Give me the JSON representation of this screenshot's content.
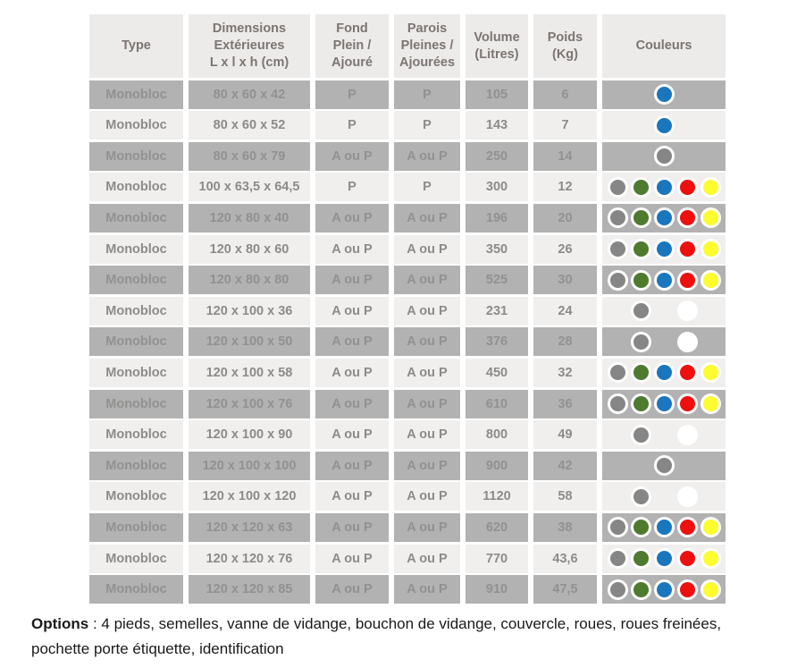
{
  "table": {
    "headers": [
      {
        "id": "type",
        "text": "Type"
      },
      {
        "id": "dimensions",
        "text": "Dimensions\nExtérieures\nL x l x h (cm)"
      },
      {
        "id": "fond",
        "text": "Fond\nPlein /\nAjouré"
      },
      {
        "id": "parois",
        "text": "Parois\nPleines /\nAjourées"
      },
      {
        "id": "volume",
        "text": "Volume\n(Litres)"
      },
      {
        "id": "poids",
        "text": "Poids\n(Kg)"
      },
      {
        "id": "couleurs",
        "text": "Couleurs"
      }
    ],
    "rows": [
      {
        "type": "Monobloc",
        "dimensions": "80 x 60 x 42",
        "fond": "P",
        "parois": "P",
        "volume": "105",
        "poids": "6",
        "couleurs": [
          null,
          null,
          "blue",
          null,
          null
        ]
      },
      {
        "type": "Monobloc",
        "dimensions": "80 x 60 x 52",
        "fond": "P",
        "parois": "P",
        "volume": "143",
        "poids": "7",
        "couleurs": [
          null,
          null,
          "blue",
          null,
          null
        ]
      },
      {
        "type": "Monobloc",
        "dimensions": "80 x 60 x 79",
        "fond": "A ou P",
        "parois": "A ou P",
        "volume": "250",
        "poids": "14",
        "couleurs": [
          null,
          null,
          "gray",
          null,
          null
        ]
      },
      {
        "type": "Monobloc",
        "dimensions": "100 x 63,5 x 64,5",
        "fond": "P",
        "parois": "P",
        "volume": "300",
        "poids": "12",
        "couleurs": [
          "gray",
          "green",
          "blue",
          "red",
          "yellow"
        ]
      },
      {
        "type": "Monobloc",
        "dimensions": "120 x 80 x 40",
        "fond": "A ou P",
        "parois": "A ou P",
        "volume": "196",
        "poids": "20",
        "couleurs": [
          "gray",
          "green",
          "blue",
          "red",
          "yellow"
        ]
      },
      {
        "type": "Monobloc",
        "dimensions": "120 x 80 x 60",
        "fond": "A ou P",
        "parois": "A ou P",
        "volume": "350",
        "poids": "26",
        "couleurs": [
          "gray",
          "green",
          "blue",
          "red",
          "yellow"
        ]
      },
      {
        "type": "Monobloc",
        "dimensions": "120 x 80 x 80",
        "fond": "A ou P",
        "parois": "A ou P",
        "volume": "525",
        "poids": "30",
        "couleurs": [
          "gray",
          "green",
          "blue",
          "red",
          "yellow"
        ]
      },
      {
        "type": "Monobloc",
        "dimensions": "120 x 100 x 36",
        "fond": "A ou P",
        "parois": "A ou P",
        "volume": "231",
        "poids": "24",
        "couleurs": [
          null,
          "gray",
          null,
          "white",
          null
        ]
      },
      {
        "type": "Monobloc",
        "dimensions": "120 x 100 x 50",
        "fond": "A ou P",
        "parois": "A ou P",
        "volume": "376",
        "poids": "28",
        "couleurs": [
          null,
          "gray",
          null,
          "white",
          null
        ]
      },
      {
        "type": "Monobloc",
        "dimensions": "120 x 100 x 58",
        "fond": "A ou P",
        "parois": "A ou P",
        "volume": "450",
        "poids": "32",
        "couleurs": [
          "gray",
          "green",
          "blue",
          "red",
          "yellow"
        ]
      },
      {
        "type": "Monobloc",
        "dimensions": "120 x 100 x 76",
        "fond": "A ou P",
        "parois": "A ou P",
        "volume": "610",
        "poids": "36",
        "couleurs": [
          "gray",
          "green",
          "blue",
          "red",
          "yellow"
        ]
      },
      {
        "type": "Monobloc",
        "dimensions": "120 x 100 x 90",
        "fond": "A ou P",
        "parois": "A ou P",
        "volume": "800",
        "poids": "49",
        "couleurs": [
          null,
          "gray",
          null,
          "white",
          null
        ]
      },
      {
        "type": "Monobloc",
        "dimensions": "120 x 100 x 100",
        "fond": "A ou P",
        "parois": "A ou P",
        "volume": "900",
        "poids": "42",
        "couleurs": [
          null,
          null,
          "gray",
          null,
          null
        ]
      },
      {
        "type": "Monobloc",
        "dimensions": "120 x 100 x 120",
        "fond": "A ou P",
        "parois": "A ou P",
        "volume": "1120",
        "poids": "58",
        "couleurs": [
          null,
          "gray",
          null,
          "white",
          null
        ]
      },
      {
        "type": "Monobloc",
        "dimensions": "120 x 120 x 63",
        "fond": "A ou P",
        "parois": "A ou P",
        "volume": "620",
        "poids": "38",
        "couleurs": [
          "gray",
          "green",
          "blue",
          "red",
          "yellow"
        ]
      },
      {
        "type": "Monobloc",
        "dimensions": "120 x 120 x 76",
        "fond": "A ou P",
        "parois": "A ou P",
        "volume": "770",
        "poids": "43,6",
        "couleurs": [
          "gray",
          "green",
          "blue",
          "red",
          "yellow"
        ]
      },
      {
        "type": "Monobloc",
        "dimensions": "120 x 120 x 85",
        "fond": "A ou P",
        "parois": "A ou P",
        "volume": "910",
        "poids": "47,5",
        "couleurs": [
          "gray",
          "green",
          "blue",
          "red",
          "yellow"
        ]
      }
    ]
  },
  "colors": {
    "dot_gray": "#868686",
    "dot_green": "#4e7b2e",
    "dot_blue": "#1a76bd",
    "dot_red": "#ee0f0f",
    "dot_yellow": "#fcfc2e",
    "dot_white": "#ffffff",
    "row_gray": "#b2b2b2",
    "row_light": "#f0efee",
    "header_bg": "#edebe9"
  },
  "footer": {
    "label": "Options",
    "text": " : 4 pieds, semelles, vanne de vidange, bouchon de vidange, couvercle, roues, roues freinées, pochette porte étiquette, identification"
  }
}
